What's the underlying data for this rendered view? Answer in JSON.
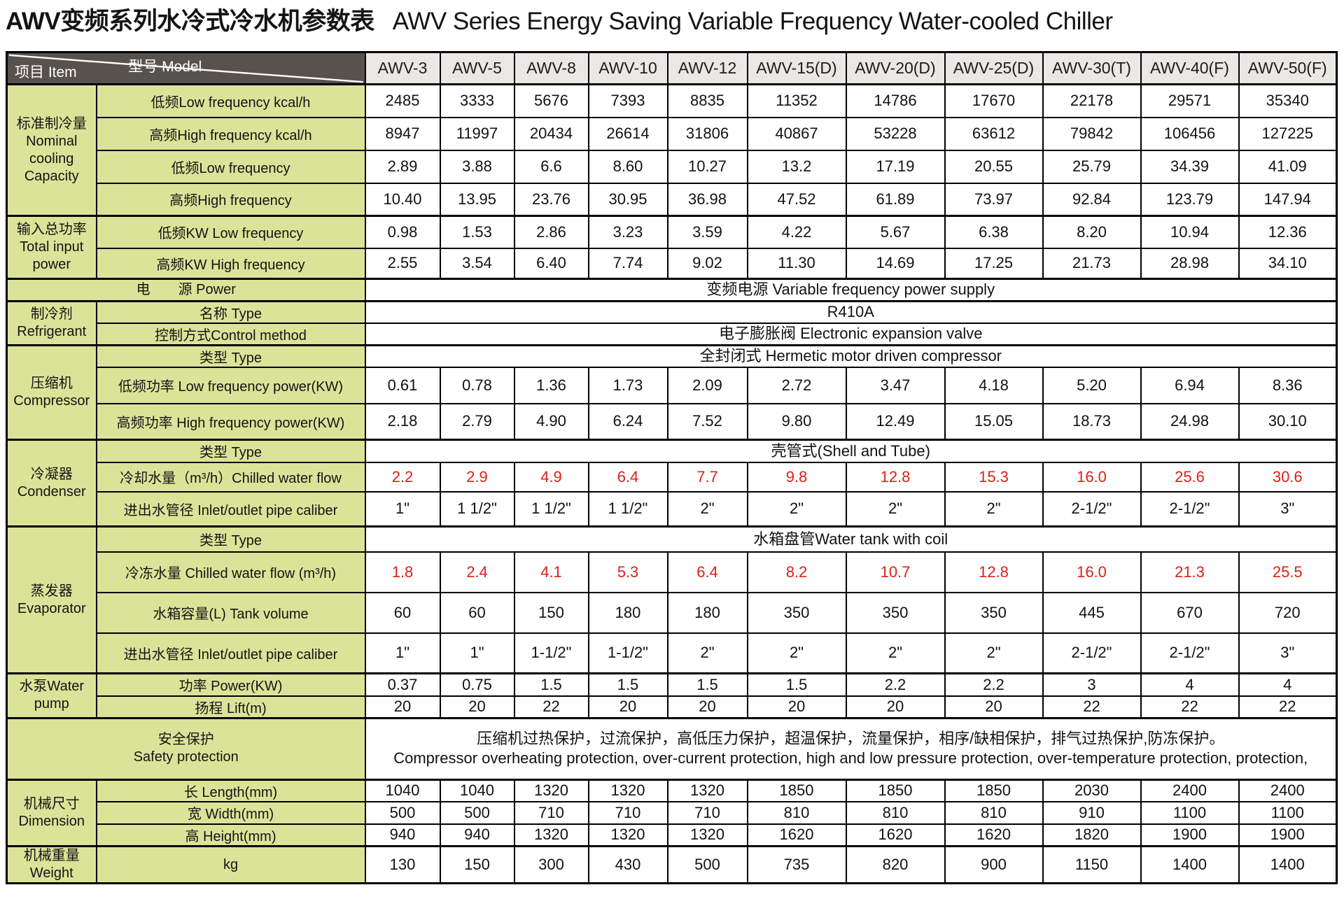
{
  "title": {
    "zh": "AWV变频系列水冷式冷水机参数表",
    "en": "AWV Series Energy Saving Variable Frequency Water-cooled Chiller"
  },
  "table": {
    "corner": {
      "model_label": "型号  Model",
      "item_label": "项目  Item"
    },
    "models": [
      "AWV-3",
      "AWV-5",
      "AWV-8",
      "AWV-10",
      "AWV-12",
      "AWV-15(D)",
      "AWV-20(D)",
      "AWV-25(D)",
      "AWV-30(T)",
      "AWV-40(F)",
      "AWV-50(F)"
    ],
    "colors": {
      "header_bg": "#57524e",
      "model_bg": "#eae8e4",
      "label_bg": "#dbe399",
      "red_value": "#dd2119"
    },
    "sections": [
      {
        "group": "标准制冷量\nNominal\ncooling\nCapacity",
        "rows": [
          {
            "label": "低频Low frequency  kcal/h",
            "values": [
              "2485",
              "3333",
              "5676",
              "7393",
              "8835",
              "11352",
              "14786",
              "17670",
              "22178",
              "29571",
              "35340"
            ]
          },
          {
            "label": "高频High frequency  kcal/h",
            "values": [
              "8947",
              "11997",
              "20434",
              "26614",
              "31806",
              "40867",
              "53228",
              "63612",
              "79842",
              "106456",
              "127225"
            ]
          },
          {
            "label": "低频Low frequency",
            "values": [
              "2.89",
              "3.88",
              "6.6",
              "8.60",
              "10.27",
              "13.2",
              "17.19",
              "20.55",
              "25.79",
              "34.39",
              "41.09"
            ]
          },
          {
            "label": "高频High frequency",
            "values": [
              "10.40",
              "13.95",
              "23.76",
              "30.95",
              "36.98",
              "47.52",
              "61.89",
              "73.97",
              "92.84",
              "123.79",
              "147.94"
            ]
          }
        ]
      },
      {
        "group": "输入总功率\nTotal input\npower",
        "rows": [
          {
            "label": "低频KW  Low frequency",
            "values": [
              "0.98",
              "1.53",
              "2.86",
              "3.23",
              "3.59",
              "4.22",
              "5.67",
              "6.38",
              "8.20",
              "10.94",
              "12.36"
            ]
          },
          {
            "label": "高频KW   High frequency",
            "values": [
              "2.55",
              "3.54",
              "6.40",
              "7.74",
              "9.02",
              "11.30",
              "14.69",
              "17.25",
              "21.73",
              "28.98",
              "34.10"
            ]
          }
        ]
      },
      {
        "full_label": "电　　源  Power",
        "rows": [
          {
            "span": "变频电源 Variable frequency power supply"
          }
        ]
      },
      {
        "group": "制冷剂\nRefrigerant",
        "rows": [
          {
            "label": "名称  Type",
            "span": "R410A"
          },
          {
            "label": "控制方式Control method",
            "span": "电子膨胀阀 Electronic expansion valve"
          }
        ]
      },
      {
        "group": "压缩机\nCompressor",
        "rows": [
          {
            "label": "类型 Type",
            "span": "全封闭式 Hermetic motor driven compressor"
          },
          {
            "label": "低频功率  Low frequency power(KW)",
            "values": [
              "0.61",
              "0.78",
              "1.36",
              "1.73",
              "2.09",
              "2.72",
              "3.47",
              "4.18",
              "5.20",
              "6.94",
              "8.36"
            ]
          },
          {
            "label": "高频功率 High frequency power(KW)",
            "values": [
              "2.18",
              "2.79",
              "4.90",
              "6.24",
              "7.52",
              "9.80",
              "12.49",
              "15.05",
              "18.73",
              "24.98",
              "30.10"
            ]
          }
        ]
      },
      {
        "group": "冷凝器\nCondenser",
        "rows": [
          {
            "label": "类型 Type",
            "span": "壳管式(Shell and Tube)"
          },
          {
            "label": "冷却水量（m³/h）Chilled water flow",
            "red": true,
            "values": [
              "2.2",
              "2.9",
              "4.9",
              "6.4",
              "7.7",
              "9.8",
              "12.8",
              "15.3",
              "16.0",
              "25.6",
              "30.6"
            ]
          },
          {
            "label": "进出水管径 Inlet/outlet pipe caliber",
            "values": [
              "1\"",
              "1 1/2\"",
              "1 1/2\"",
              "1 1/2\"",
              "2\"",
              "2\"",
              "2\"",
              "2\"",
              "2-1/2\"",
              "2-1/2\"",
              "3\""
            ]
          }
        ]
      },
      {
        "group": "蒸发器\nEvaporator",
        "rows": [
          {
            "label": "类型 Type",
            "span": "水箱盘管Water tank with coil"
          },
          {
            "label": "冷冻水量 Chilled water flow (m³/h)",
            "red": true,
            "values": [
              "1.8",
              "2.4",
              "4.1",
              "5.3",
              "6.4",
              "8.2",
              "10.7",
              "12.8",
              "16.0",
              "21.3",
              "25.5"
            ]
          },
          {
            "label": "水箱容量(L) Tank volume",
            "values": [
              "60",
              "60",
              "150",
              "180",
              "180",
              "350",
              "350",
              "350",
              "445",
              "670",
              "720"
            ]
          },
          {
            "label": "进出水管径   Inlet/outlet pipe caliber",
            "values": [
              "1\"",
              "1\"",
              "1-1/2\"",
              "1-1/2\"",
              "2\"",
              "2\"",
              "2\"",
              "2\"",
              "2-1/2\"",
              "2-1/2\"",
              "3\""
            ]
          }
        ]
      },
      {
        "group": "水泵Water\npump",
        "rows": [
          {
            "label": "功率  Power(KW)",
            "values": [
              "0.37",
              "0.75",
              "1.5",
              "1.5",
              "1.5",
              "1.5",
              "2.2",
              "2.2",
              "3",
              "4",
              "4"
            ]
          },
          {
            "label": "扬程  Lift(m)",
            "values": [
              "20",
              "20",
              "22",
              "20",
              "20",
              "20",
              "20",
              "20",
              "22",
              "22",
              "22"
            ]
          }
        ]
      },
      {
        "full_label": "安全保护\nSafety protection",
        "rows": [
          {
            "span": "压缩机过热保护，过流保护，高低压力保护，超温保护，流量保护，相序/缺相保护，排气过热保护,防冻保护。\nCompressor overheating protection, over-current protection, high and low pressure protection, over-temperature protection, protection,"
          }
        ]
      },
      {
        "group": "机械尺寸\nDimension",
        "rows": [
          {
            "label": "长  Length(mm)",
            "values": [
              "1040",
              "1040",
              "1320",
              "1320",
              "1320",
              "1850",
              "1850",
              "1850",
              "2030",
              "2400",
              "2400"
            ]
          },
          {
            "label": "宽  Width(mm)",
            "values": [
              "500",
              "500",
              "710",
              "710",
              "710",
              "810",
              "810",
              "810",
              "910",
              "1100",
              "1100"
            ]
          },
          {
            "label": "高  Height(mm)",
            "values": [
              "940",
              "940",
              "1320",
              "1320",
              "1320",
              "1620",
              "1620",
              "1620",
              "1820",
              "1900",
              "1900"
            ]
          }
        ]
      },
      {
        "group": "机械重量Weight",
        "rows": [
          {
            "label": "kg",
            "values": [
              "130",
              "150",
              "300",
              "430",
              "500",
              "735",
              "820",
              "900",
              "1150",
              "1400",
              "1400"
            ]
          }
        ]
      }
    ]
  }
}
